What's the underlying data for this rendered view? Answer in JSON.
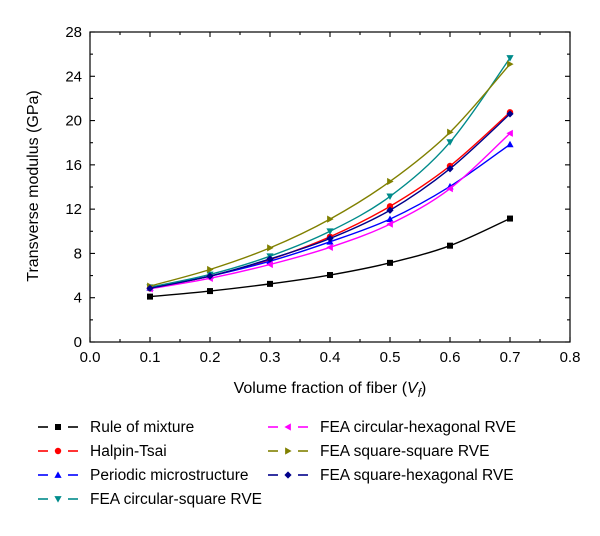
{
  "chart_data": {
    "type": "line",
    "title": "",
    "xlabel": "Volume fraction of fiber (",
    "xlabel_var": "V",
    "xlabel_sub": "f",
    "xlabel_close": ")",
    "ylabel": "Transverse modulus (GPa)",
    "xlim": [
      0.0,
      0.8
    ],
    "ylim": [
      0,
      28
    ],
    "x_ticks": [
      "0.0",
      "0.1",
      "0.2",
      "0.3",
      "0.4",
      "0.5",
      "0.6",
      "0.7",
      "0.8"
    ],
    "y_ticks": [
      "0",
      "4",
      "8",
      "12",
      "16",
      "20",
      "24",
      "28"
    ],
    "grid": false,
    "legend_position": "bottom",
    "x": [
      0.1,
      0.2,
      0.3,
      0.4,
      0.5,
      0.6,
      0.7
    ],
    "series": [
      {
        "name": "Rule of mixture",
        "color": "#000000",
        "marker": "square",
        "values": [
          4.1,
          4.6,
          5.25,
          6.05,
          7.15,
          8.7,
          11.15
        ]
      },
      {
        "name": "Halpin-Tsai",
        "color": "#ff0000",
        "marker": "circle",
        "values": [
          4.85,
          5.95,
          7.45,
          9.5,
          12.25,
          15.9,
          20.75
        ]
      },
      {
        "name": "Periodic microstructure",
        "color": "#0000ff",
        "marker": "triangle-up",
        "values": [
          4.9,
          5.95,
          7.3,
          9.05,
          11.1,
          14.05,
          17.85
        ]
      },
      {
        "name": "FEA circular-square RVE",
        "color": "#008b8b",
        "marker": "triangle-down",
        "values": [
          4.95,
          6.1,
          7.75,
          10.0,
          13.15,
          18.05,
          25.65
        ]
      },
      {
        "name": "FEA circular-hexagonal RVE",
        "color": "#ff00ff",
        "marker": "triangle-left",
        "values": [
          4.8,
          5.75,
          7.0,
          8.55,
          10.65,
          13.85,
          18.85
        ]
      },
      {
        "name": "FEA square-square RVE",
        "color": "#808000",
        "marker": "triangle-right",
        "values": [
          5.05,
          6.55,
          8.5,
          11.1,
          14.5,
          18.95,
          25.1
        ]
      },
      {
        "name": "FEA square-hexagonal RVE",
        "color": "#00008b",
        "marker": "diamond",
        "values": [
          4.85,
          5.95,
          7.5,
          9.35,
          11.9,
          15.65,
          20.6
        ]
      }
    ]
  }
}
